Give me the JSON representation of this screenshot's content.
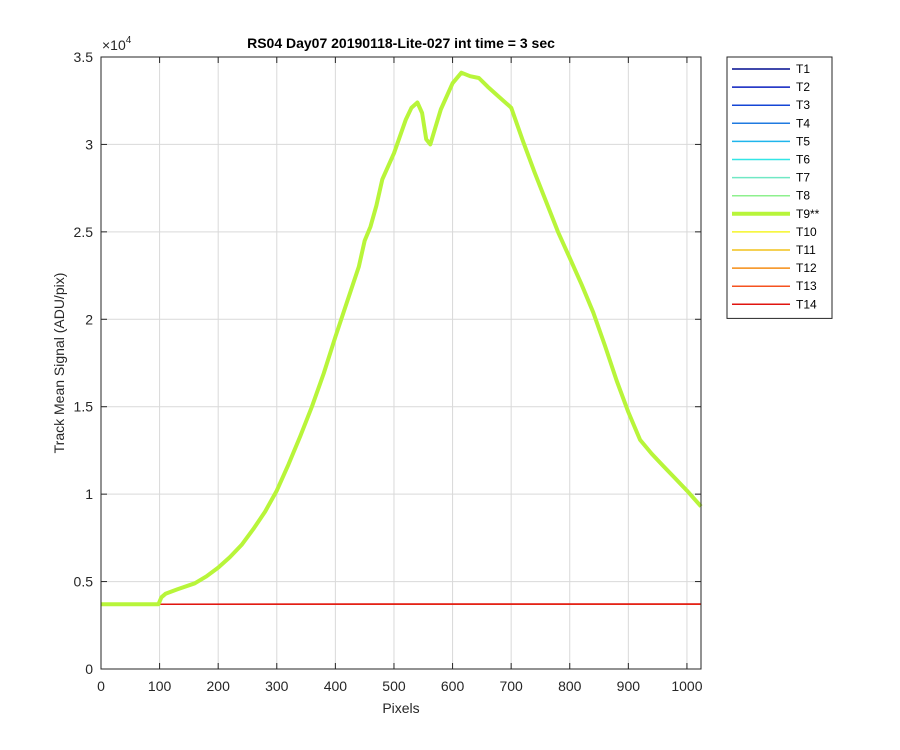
{
  "chart_data": {
    "type": "line",
    "title": "RS04 Day07 20190118-Lite-027 int time = 3 sec",
    "xlabel": "Pixels",
    "ylabel": "Track Mean Signal (ADU/pix)",
    "y_exponent_label": "×10",
    "y_exponent_power": "4",
    "xlim": [
      0,
      1024
    ],
    "ylim": [
      0,
      35000
    ],
    "x_ticks": [
      0,
      100,
      200,
      300,
      400,
      500,
      600,
      700,
      800,
      900,
      1000
    ],
    "y_ticks": [
      0,
      5000,
      10000,
      15000,
      20000,
      25000,
      30000,
      35000
    ],
    "y_tick_labels": [
      "0",
      "0.5",
      "1",
      "1.5",
      "2",
      "2.5",
      "3",
      "3.5"
    ],
    "grid": true,
    "legend_position": "outside-right",
    "series": [
      {
        "name": "T1",
        "color": "#000c8f",
        "width": 1.5,
        "x": [
          0,
          1024
        ],
        "y": [
          3700,
          3700
        ]
      },
      {
        "name": "T2",
        "color": "#0a1fbf",
        "width": 1.5,
        "x": [
          0,
          1024
        ],
        "y": [
          3700,
          3700
        ]
      },
      {
        "name": "T3",
        "color": "#1446d6",
        "width": 1.5,
        "x": [
          0,
          1024
        ],
        "y": [
          3700,
          3700
        ]
      },
      {
        "name": "T4",
        "color": "#1f7ae0",
        "width": 1.5,
        "x": [
          0,
          1024
        ],
        "y": [
          3700,
          3700
        ]
      },
      {
        "name": "T5",
        "color": "#1fb5ec",
        "width": 1.5,
        "x": [
          0,
          1024
        ],
        "y": [
          3700,
          3700
        ]
      },
      {
        "name": "T6",
        "color": "#33e6e6",
        "width": 1.5,
        "x": [
          0,
          1024
        ],
        "y": [
          3700,
          3700
        ]
      },
      {
        "name": "T7",
        "color": "#70e8c4",
        "width": 1.5,
        "x": [
          0,
          1024
        ],
        "y": [
          3700,
          3700
        ]
      },
      {
        "name": "T8",
        "color": "#8ef08e",
        "width": 1.5,
        "x": [
          0,
          1024
        ],
        "y": [
          3700,
          3700
        ]
      },
      {
        "name": "T9**",
        "color": "#b8f53a",
        "width": 4,
        "x": [
          0,
          98,
          103,
          110,
          130,
          160,
          180,
          200,
          220,
          240,
          260,
          280,
          300,
          320,
          340,
          360,
          380,
          400,
          420,
          440,
          450,
          460,
          470,
          480,
          500,
          520,
          530,
          540,
          548,
          555,
          562,
          570,
          580,
          600,
          615,
          630,
          645,
          660,
          680,
          700,
          720,
          740,
          760,
          780,
          800,
          820,
          840,
          860,
          880,
          900,
          920,
          940,
          960,
          980,
          1000,
          1024
        ],
        "y": [
          3700,
          3700,
          4100,
          4300,
          4550,
          4900,
          5300,
          5800,
          6400,
          7100,
          8000,
          9000,
          10200,
          11700,
          13300,
          15000,
          16900,
          19000,
          21000,
          23000,
          24500,
          25300,
          26500,
          28000,
          29500,
          31400,
          32100,
          32400,
          31800,
          30300,
          30000,
          30900,
          32000,
          33500,
          34100,
          33900,
          33800,
          33300,
          32700,
          32100,
          30200,
          28400,
          26700,
          25000,
          23500,
          22000,
          20400,
          18500,
          16500,
          14700,
          13100,
          12300,
          11600,
          10900,
          10200,
          9300
        ]
      },
      {
        "name": "T10",
        "color": "#f5f529",
        "width": 1.5,
        "x": [
          0,
          1024
        ],
        "y": [
          3700,
          3700
        ]
      },
      {
        "name": "T11",
        "color": "#f2c21a",
        "width": 1.5,
        "x": [
          0,
          1024
        ],
        "y": [
          3700,
          3700
        ]
      },
      {
        "name": "T12",
        "color": "#f58d14",
        "width": 1.5,
        "x": [
          0,
          1024
        ],
        "y": [
          3700,
          3700
        ]
      },
      {
        "name": "T13",
        "color": "#f5521f",
        "width": 1.5,
        "x": [
          0,
          1024
        ],
        "y": [
          3700,
          3700
        ]
      },
      {
        "name": "T14",
        "color": "#e0140f",
        "width": 1.5,
        "x": [
          0,
          102,
          500,
          1024
        ],
        "y": [
          3700,
          3700,
          3720,
          3720
        ]
      }
    ]
  }
}
